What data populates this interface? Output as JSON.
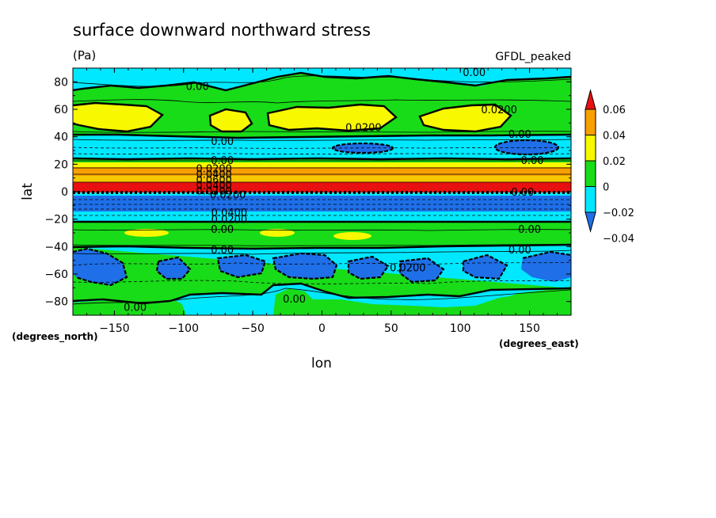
{
  "chart_data": {
    "type": "heatmap",
    "title": "surface downward northward stress",
    "units": "(Pa)",
    "model": "GFDL_peaked",
    "xlabel": "lon",
    "ylabel": "lat",
    "x_units": "(degrees_east)",
    "y_units": "(degrees_north)",
    "xlim": [
      -180,
      180
    ],
    "ylim": [
      -90,
      90
    ],
    "x_ticks": [
      -150,
      -100,
      -50,
      0,
      50,
      100,
      150
    ],
    "y_ticks": [
      80,
      60,
      40,
      20,
      0,
      -20,
      -40,
      -60,
      -80
    ],
    "colorbar": {
      "levels": [
        -0.04,
        -0.02,
        0,
        0.02,
        0.04,
        0.06
      ],
      "labels": [
        "0.06",
        "0.04",
        "0.02",
        "0",
        "−0.02",
        "−0.04"
      ],
      "colors": [
        "#1e6fe8",
        "#00e8ff",
        "#18dc18",
        "#f8f800",
        "#f8a000",
        "#e81010"
      ]
    },
    "contour_labels": [
      {
        "text": "0.00",
        "lon": -90,
        "lat": 77
      },
      {
        "text": "0.00",
        "lon": 110,
        "lat": 87
      },
      {
        "text": "0.0200",
        "lon": 128,
        "lat": 60
      },
      {
        "text": "0.0200",
        "lon": 30,
        "lat": 47
      },
      {
        "text": "0.00",
        "lon": -72,
        "lat": 37
      },
      {
        "text": "0.00",
        "lon": 143,
        "lat": 42
      },
      {
        "text": "0.00",
        "lon": 152,
        "lat": 23
      },
      {
        "text": "0.00",
        "lon": -72,
        "lat": 23
      },
      {
        "text": "0.0200",
        "lon": -78,
        "lat": 17
      },
      {
        "text": "0.0400",
        "lon": -78,
        "lat": 13
      },
      {
        "text": "0.0600",
        "lon": -78,
        "lat": 9
      },
      {
        "text": "0.0400",
        "lon": -78,
        "lat": 5
      },
      {
        "text": "0.0200",
        "lon": -78,
        "lat": 1
      },
      {
        "text": "0.0200",
        "lon": -68,
        "lat": -2
      },
      {
        "text": "0.0400",
        "lon": -67,
        "lat": -15
      },
      {
        "text": "0.0200",
        "lon": -67,
        "lat": -20
      },
      {
        "text": "0.00",
        "lon": -72,
        "lat": -27
      },
      {
        "text": "0.00",
        "lon": 150,
        "lat": -27
      },
      {
        "text": "0.00",
        "lon": -72,
        "lat": -42
      },
      {
        "text": "0.00",
        "lon": 143,
        "lat": -42
      },
      {
        "text": "0.0200",
        "lon": 62,
        "lat": -55
      },
      {
        "text": "0.00",
        "lon": -20,
        "lat": -78
      },
      {
        "text": "0.00",
        "lon": -135,
        "lat": -84
      },
      {
        "text": "0.00",
        "lon": 145,
        "lat": 0
      }
    ]
  }
}
